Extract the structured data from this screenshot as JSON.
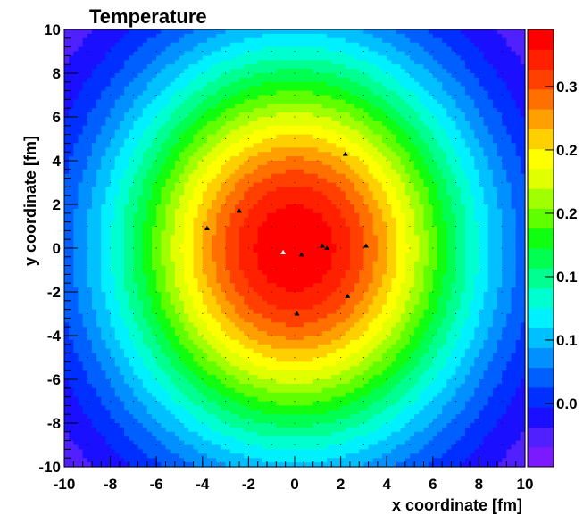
{
  "chart_data": {
    "type": "heatmap",
    "title": "Temperature",
    "xlabel": "x coordinate [fm]",
    "ylabel": "y coordinate [fm]",
    "xlim": [
      -10,
      10
    ],
    "ylim": [
      -10,
      10
    ],
    "x_ticks": [
      "-10",
      "-8",
      "-6",
      "-4",
      "-2",
      "0",
      "2",
      "4",
      "6",
      "8",
      "10"
    ],
    "y_ticks": [
      "-10",
      "-8",
      "-6",
      "-4",
      "-2",
      "0",
      "2",
      "4",
      "6",
      "8",
      "10"
    ],
    "colorbar": {
      "zlim": [
        0.0,
        0.345
      ],
      "ticks": [
        {
          "value": 0.05,
          "label": "0.0"
        },
        {
          "value": 0.1,
          "label": "0.1"
        },
        {
          "value": 0.15,
          "label": "0.1"
        },
        {
          "value": 0.2,
          "label": "0.2"
        },
        {
          "value": 0.25,
          "label": "0.2"
        },
        {
          "value": 0.3,
          "label": "0.3"
        }
      ],
      "palette": [
        "#7b1aff",
        "#5020ff",
        "#1a10ff",
        "#0030ff",
        "#0060ff",
        "#0090ff",
        "#00c0ff",
        "#00f0ff",
        "#00ffd0",
        "#00ff90",
        "#00ff50",
        "#10ff10",
        "#60ff00",
        "#a0ff00",
        "#e0ff00",
        "#ffff00",
        "#ffd000",
        "#ffa000",
        "#ff7000",
        "#ff4000",
        "#ff2000",
        "#ff0000"
      ]
    },
    "field": {
      "center": [
        0.0,
        0.0
      ],
      "peak": 0.345,
      "sigma_x": 5.6,
      "sigma_y": 6.5
    },
    "points": [
      {
        "x": 2.2,
        "y": 4.3,
        "color": "#000000"
      },
      {
        "x": -2.4,
        "y": 1.7,
        "color": "#000000"
      },
      {
        "x": -3.8,
        "y": 0.9,
        "color": "#000000"
      },
      {
        "x": 1.2,
        "y": 0.1,
        "color": "#000000"
      },
      {
        "x": 1.4,
        "y": 0.0,
        "color": "#000000"
      },
      {
        "x": 3.1,
        "y": 0.1,
        "color": "#000000"
      },
      {
        "x": 0.3,
        "y": -0.3,
        "color": "#000000"
      },
      {
        "x": -0.5,
        "y": -0.2,
        "color": "#ffffff"
      },
      {
        "x": 2.3,
        "y": -2.2,
        "color": "#000000"
      },
      {
        "x": 0.1,
        "y": -3.0,
        "color": "#000000"
      }
    ],
    "grid": "dotted"
  }
}
